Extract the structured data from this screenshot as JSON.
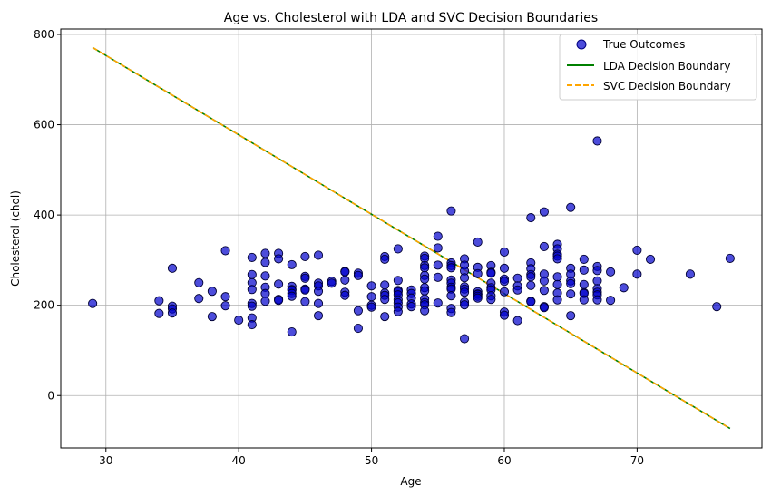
{
  "chart_data": {
    "type": "scatter",
    "title": "Age vs. Cholesterol with LDA and SVC Decision Boundaries",
    "xlabel": "Age",
    "ylabel": "Cholesterol (chol)",
    "xlim": [
      26.6,
      79.4
    ],
    "ylim": [
      -116,
      812
    ],
    "xticks": [
      30,
      40,
      50,
      60,
      70
    ],
    "yticks": [
      0,
      200,
      400,
      600,
      800
    ],
    "grid": true,
    "legend_position": "top-right",
    "series": [
      {
        "name": "True Outcomes",
        "kind": "scatter",
        "color": "#0000cc",
        "points": [
          [
            29,
            204
          ],
          [
            34,
            210
          ],
          [
            34,
            182
          ],
          [
            35,
            282
          ],
          [
            35,
            198
          ],
          [
            35,
            192
          ],
          [
            35,
            183
          ],
          [
            37,
            250
          ],
          [
            37,
            215
          ],
          [
            38,
            231
          ],
          [
            38,
            175
          ],
          [
            39,
            321
          ],
          [
            39,
            219
          ],
          [
            39,
            199
          ],
          [
            40,
            167
          ],
          [
            41,
            306
          ],
          [
            41,
            268
          ],
          [
            41,
            250
          ],
          [
            41,
            235
          ],
          [
            41,
            204
          ],
          [
            41,
            198
          ],
          [
            41,
            172
          ],
          [
            41,
            157
          ],
          [
            42,
            315
          ],
          [
            42,
            295
          ],
          [
            42,
            265
          ],
          [
            42,
            240
          ],
          [
            42,
            226
          ],
          [
            42,
            209
          ],
          [
            43,
            315
          ],
          [
            43,
            303
          ],
          [
            43,
            247
          ],
          [
            43,
            213
          ],
          [
            43,
            211
          ],
          [
            44,
            290
          ],
          [
            44,
            242
          ],
          [
            44,
            235
          ],
          [
            44,
            233
          ],
          [
            44,
            226
          ],
          [
            44,
            220
          ],
          [
            44,
            141
          ],
          [
            45,
            308
          ],
          [
            45,
            264
          ],
          [
            45,
            260
          ],
          [
            45,
            236
          ],
          [
            45,
            234
          ],
          [
            45,
            208
          ],
          [
            46,
            311
          ],
          [
            46,
            249
          ],
          [
            46,
            243
          ],
          [
            46,
            231
          ],
          [
            46,
            204
          ],
          [
            46,
            177
          ],
          [
            47,
            253
          ],
          [
            47,
            249
          ],
          [
            48,
            275
          ],
          [
            48,
            274
          ],
          [
            48,
            256
          ],
          [
            48,
            229
          ],
          [
            48,
            222
          ],
          [
            49,
            271
          ],
          [
            49,
            266
          ],
          [
            49,
            188
          ],
          [
            49,
            149
          ],
          [
            50,
            243
          ],
          [
            50,
            219
          ],
          [
            50,
            200
          ],
          [
            50,
            196
          ],
          [
            51,
            308
          ],
          [
            51,
            302
          ],
          [
            51,
            245
          ],
          [
            51,
            227
          ],
          [
            51,
            222
          ],
          [
            51,
            213
          ],
          [
            51,
            175
          ],
          [
            52,
            325
          ],
          [
            52,
            255
          ],
          [
            52,
            233
          ],
          [
            52,
            230
          ],
          [
            52,
            223
          ],
          [
            52,
            212
          ],
          [
            52,
            205
          ],
          [
            52,
            196
          ],
          [
            52,
            186
          ],
          [
            53,
            234
          ],
          [
            53,
            226
          ],
          [
            53,
            216
          ],
          [
            53,
            203
          ],
          [
            53,
            197
          ],
          [
            54,
            309
          ],
          [
            54,
            304
          ],
          [
            54,
            288
          ],
          [
            54,
            283
          ],
          [
            54,
            266
          ],
          [
            54,
            258
          ],
          [
            54,
            239
          ],
          [
            54,
            232
          ],
          [
            54,
            214
          ],
          [
            54,
            206
          ],
          [
            54,
            201
          ],
          [
            54,
            188
          ],
          [
            55,
            353
          ],
          [
            55,
            327
          ],
          [
            55,
            289
          ],
          [
            55,
            262
          ],
          [
            55,
            205
          ],
          [
            56,
            409
          ],
          [
            56,
            294
          ],
          [
            56,
            288
          ],
          [
            56,
            283
          ],
          [
            56,
            256
          ],
          [
            56,
            249
          ],
          [
            56,
            240
          ],
          [
            56,
            236
          ],
          [
            56,
            221
          ],
          [
            56,
            193
          ],
          [
            56,
            184
          ],
          [
            57,
            303
          ],
          [
            57,
            289
          ],
          [
            57,
            276
          ],
          [
            57,
            261
          ],
          [
            57,
            241
          ],
          [
            57,
            236
          ],
          [
            57,
            229
          ],
          [
            57,
            207
          ],
          [
            57,
            201
          ],
          [
            57,
            126
          ],
          [
            58,
            340
          ],
          [
            58,
            284
          ],
          [
            58,
            270
          ],
          [
            58,
            230
          ],
          [
            58,
            225
          ],
          [
            58,
            224
          ],
          [
            58,
            220
          ],
          [
            58,
            216
          ],
          [
            59,
            288
          ],
          [
            59,
            273
          ],
          [
            59,
            271
          ],
          [
            59,
            249
          ],
          [
            59,
            239
          ],
          [
            59,
            234
          ],
          [
            59,
            221
          ],
          [
            59,
            213
          ],
          [
            60,
            318
          ],
          [
            60,
            282
          ],
          [
            60,
            258
          ],
          [
            60,
            253
          ],
          [
            60,
            230
          ],
          [
            60,
            185
          ],
          [
            60,
            178
          ],
          [
            61,
            260
          ],
          [
            61,
            243
          ],
          [
            61,
            234
          ],
          [
            61,
            166
          ],
          [
            62,
            394
          ],
          [
            62,
            294
          ],
          [
            62,
            281
          ],
          [
            62,
            268
          ],
          [
            62,
            263
          ],
          [
            62,
            244
          ],
          [
            62,
            209
          ],
          [
            62,
            208
          ],
          [
            63,
            407
          ],
          [
            63,
            330
          ],
          [
            63,
            269
          ],
          [
            63,
            254
          ],
          [
            63,
            233
          ],
          [
            63,
            197
          ],
          [
            63,
            195
          ],
          [
            64,
            335
          ],
          [
            64,
            325
          ],
          [
            64,
            313
          ],
          [
            64,
            309
          ],
          [
            64,
            303
          ],
          [
            64,
            263
          ],
          [
            64,
            246
          ],
          [
            64,
            227
          ],
          [
            64,
            212
          ],
          [
            65,
            417
          ],
          [
            65,
            282
          ],
          [
            65,
            269
          ],
          [
            65,
            254
          ],
          [
            65,
            248
          ],
          [
            65,
            225
          ],
          [
            65,
            177
          ],
          [
            66,
            302
          ],
          [
            66,
            278
          ],
          [
            66,
            246
          ],
          [
            66,
            228
          ],
          [
            66,
            226
          ],
          [
            66,
            212
          ],
          [
            67,
            564
          ],
          [
            67,
            286
          ],
          [
            67,
            277
          ],
          [
            67,
            254
          ],
          [
            67,
            237
          ],
          [
            67,
            229
          ],
          [
            67,
            223
          ],
          [
            67,
            212
          ],
          [
            68,
            274
          ],
          [
            68,
            211
          ],
          [
            69,
            239
          ],
          [
            70,
            322
          ],
          [
            70,
            269
          ],
          [
            71,
            302
          ],
          [
            74,
            269
          ],
          [
            76,
            197
          ],
          [
            77,
            304
          ]
        ]
      },
      {
        "name": "LDA Decision Boundary",
        "kind": "line",
        "color": "#008000",
        "dash": "solid",
        "x": [
          29,
          77
        ],
        "y": [
          771,
          -73
        ]
      },
      {
        "name": "SVC Decision Boundary",
        "kind": "line",
        "color": "#ffa500",
        "dash": "dashed",
        "x": [
          29,
          77
        ],
        "y": [
          771,
          -73
        ]
      }
    ]
  }
}
